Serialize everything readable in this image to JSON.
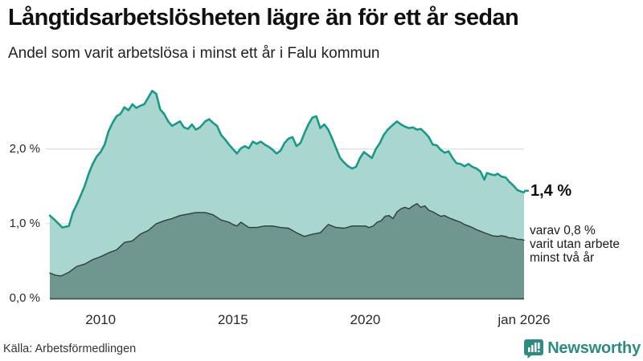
{
  "chart_data": {
    "type": "area",
    "title": "Långtidsarbetslösheten lägre än för ett år sedan",
    "subtitle": "Andel som varit arbetslösa i minst ett år i Falu kommun",
    "x_range": [
      2008.08,
      2026.0
    ],
    "y_axis": {
      "range": [
        0,
        2.9
      ],
      "ticks": [
        {
          "label": "2,0 %",
          "value": 2.0
        },
        {
          "label": "1,0 %",
          "value": 1.0
        },
        {
          "label": "0,0 %",
          "value": 0.0
        }
      ]
    },
    "x_axis": {
      "ticks": [
        {
          "label": "2010",
          "year": 2010
        },
        {
          "label": "2015",
          "year": 2015
        },
        {
          "label": "2020",
          "year": 2020
        },
        {
          "label": "jan 2026",
          "year": 2026
        }
      ]
    },
    "grid": "horizontal-only",
    "legend": "none",
    "series": [
      {
        "name": "Andel arbetslösa minst ett år",
        "line_color": "#1a998a",
        "fill_color": "#a9d6cf",
        "stroke_width": 2.6,
        "points": [
          [
            2008.08,
            1.11
          ],
          [
            2008.3,
            1.04
          ],
          [
            2008.55,
            0.95
          ],
          [
            2008.8,
            0.97
          ],
          [
            2008.95,
            1.15
          ],
          [
            2009.1,
            1.26
          ],
          [
            2009.25,
            1.38
          ],
          [
            2009.4,
            1.51
          ],
          [
            2009.55,
            1.67
          ],
          [
            2009.7,
            1.8
          ],
          [
            2009.85,
            1.9
          ],
          [
            2010.0,
            1.96
          ],
          [
            2010.15,
            2.06
          ],
          [
            2010.3,
            2.24
          ],
          [
            2010.45,
            2.35
          ],
          [
            2010.6,
            2.44
          ],
          [
            2010.75,
            2.47
          ],
          [
            2010.9,
            2.56
          ],
          [
            2011.05,
            2.52
          ],
          [
            2011.2,
            2.6
          ],
          [
            2011.35,
            2.55
          ],
          [
            2011.5,
            2.58
          ],
          [
            2011.65,
            2.6
          ],
          [
            2011.8,
            2.69
          ],
          [
            2011.95,
            2.78
          ],
          [
            2012.1,
            2.74
          ],
          [
            2012.25,
            2.53
          ],
          [
            2012.4,
            2.47
          ],
          [
            2012.55,
            2.37
          ],
          [
            2012.7,
            2.31
          ],
          [
            2012.85,
            2.34
          ],
          [
            2013.0,
            2.37
          ],
          [
            2013.15,
            2.29
          ],
          [
            2013.3,
            2.27
          ],
          [
            2013.45,
            2.33
          ],
          [
            2013.6,
            2.26
          ],
          [
            2013.75,
            2.29
          ],
          [
            2013.95,
            2.37
          ],
          [
            2014.1,
            2.4
          ],
          [
            2014.25,
            2.35
          ],
          [
            2014.4,
            2.31
          ],
          [
            2014.55,
            2.19
          ],
          [
            2014.7,
            2.13
          ],
          [
            2014.85,
            2.06
          ],
          [
            2015.0,
            2.0
          ],
          [
            2015.15,
            1.94
          ],
          [
            2015.3,
            2.01
          ],
          [
            2015.45,
            2.04
          ],
          [
            2015.6,
            2.01
          ],
          [
            2015.75,
            2.1
          ],
          [
            2015.9,
            2.07
          ],
          [
            2016.05,
            2.1
          ],
          [
            2016.2,
            2.06
          ],
          [
            2016.35,
            2.03
          ],
          [
            2016.5,
            1.99
          ],
          [
            2016.65,
            1.94
          ],
          [
            2016.8,
            1.98
          ],
          [
            2016.95,
            2.08
          ],
          [
            2017.1,
            2.14
          ],
          [
            2017.25,
            2.16
          ],
          [
            2017.4,
            2.04
          ],
          [
            2017.55,
            2.08
          ],
          [
            2017.7,
            2.21
          ],
          [
            2017.85,
            2.33
          ],
          [
            2018.0,
            2.42
          ],
          [
            2018.15,
            2.44
          ],
          [
            2018.3,
            2.28
          ],
          [
            2018.45,
            2.33
          ],
          [
            2018.6,
            2.26
          ],
          [
            2018.75,
            2.14
          ],
          [
            2018.9,
            2.01
          ],
          [
            2019.05,
            1.88
          ],
          [
            2019.2,
            1.82
          ],
          [
            2019.35,
            1.77
          ],
          [
            2019.5,
            1.74
          ],
          [
            2019.65,
            1.76
          ],
          [
            2019.8,
            1.88
          ],
          [
            2019.95,
            1.96
          ],
          [
            2020.1,
            1.92
          ],
          [
            2020.25,
            1.88
          ],
          [
            2020.4,
            2.0
          ],
          [
            2020.55,
            2.08
          ],
          [
            2020.7,
            2.19
          ],
          [
            2020.85,
            2.26
          ],
          [
            2021.0,
            2.31
          ],
          [
            2021.2,
            2.37
          ],
          [
            2021.35,
            2.33
          ],
          [
            2021.5,
            2.3
          ],
          [
            2021.65,
            2.28
          ],
          [
            2021.8,
            2.29
          ],
          [
            2021.95,
            2.26
          ],
          [
            2022.1,
            2.27
          ],
          [
            2022.25,
            2.22
          ],
          [
            2022.4,
            2.16
          ],
          [
            2022.55,
            2.06
          ],
          [
            2022.7,
            2.05
          ],
          [
            2022.85,
            1.99
          ],
          [
            2023.0,
            1.95
          ],
          [
            2023.15,
            1.97
          ],
          [
            2023.3,
            1.88
          ],
          [
            2023.45,
            1.81
          ],
          [
            2023.6,
            1.8
          ],
          [
            2023.75,
            1.77
          ],
          [
            2023.9,
            1.8
          ],
          [
            2024.05,
            1.76
          ],
          [
            2024.2,
            1.74
          ],
          [
            2024.35,
            1.7
          ],
          [
            2024.5,
            1.59
          ],
          [
            2024.6,
            1.68
          ],
          [
            2024.75,
            1.66
          ],
          [
            2024.9,
            1.65
          ],
          [
            2025.0,
            1.67
          ],
          [
            2025.15,
            1.63
          ],
          [
            2025.3,
            1.62
          ],
          [
            2025.45,
            1.56
          ],
          [
            2025.6,
            1.51
          ],
          [
            2025.75,
            1.45
          ],
          [
            2025.9,
            1.43
          ],
          [
            2026.0,
            1.42
          ]
        ],
        "end_value_label": "1,4 %"
      },
      {
        "name": "varav utan arbete minst två år",
        "line_color": "#2f3e3c",
        "fill_color": "#6f968f",
        "stroke_width": 1.4,
        "points": [
          [
            2008.08,
            0.34
          ],
          [
            2008.3,
            0.31
          ],
          [
            2008.5,
            0.3
          ],
          [
            2008.8,
            0.35
          ],
          [
            2009.1,
            0.43
          ],
          [
            2009.4,
            0.46
          ],
          [
            2009.7,
            0.52
          ],
          [
            2010.0,
            0.56
          ],
          [
            2010.3,
            0.61
          ],
          [
            2010.6,
            0.65
          ],
          [
            2010.9,
            0.75
          ],
          [
            2011.2,
            0.77
          ],
          [
            2011.5,
            0.86
          ],
          [
            2011.8,
            0.91
          ],
          [
            2012.1,
            1.0
          ],
          [
            2012.4,
            1.04
          ],
          [
            2012.7,
            1.07
          ],
          [
            2013.0,
            1.11
          ],
          [
            2013.3,
            1.13
          ],
          [
            2013.6,
            1.15
          ],
          [
            2013.95,
            1.15
          ],
          [
            2014.25,
            1.12
          ],
          [
            2014.55,
            1.05
          ],
          [
            2014.85,
            1.02
          ],
          [
            2015.0,
            0.99
          ],
          [
            2015.15,
            0.97
          ],
          [
            2015.3,
            1.02
          ],
          [
            2015.6,
            0.95
          ],
          [
            2015.9,
            0.95
          ],
          [
            2016.2,
            0.97
          ],
          [
            2016.5,
            0.97
          ],
          [
            2016.8,
            0.95
          ],
          [
            2017.1,
            0.94
          ],
          [
            2017.4,
            0.88
          ],
          [
            2017.7,
            0.83
          ],
          [
            2018.0,
            0.86
          ],
          [
            2018.3,
            0.88
          ],
          [
            2018.6,
            0.99
          ],
          [
            2018.9,
            0.95
          ],
          [
            2019.2,
            0.94
          ],
          [
            2019.5,
            0.97
          ],
          [
            2019.8,
            0.97
          ],
          [
            2020.0,
            0.97
          ],
          [
            2020.15,
            0.95
          ],
          [
            2020.3,
            0.97
          ],
          [
            2020.45,
            1.02
          ],
          [
            2020.6,
            1.04
          ],
          [
            2020.75,
            1.1
          ],
          [
            2020.9,
            1.11
          ],
          [
            2021.05,
            1.07
          ],
          [
            2021.2,
            1.16
          ],
          [
            2021.35,
            1.2
          ],
          [
            2021.5,
            1.22
          ],
          [
            2021.65,
            1.2
          ],
          [
            2021.8,
            1.24
          ],
          [
            2021.95,
            1.27
          ],
          [
            2022.1,
            1.22
          ],
          [
            2022.25,
            1.24
          ],
          [
            2022.4,
            1.18
          ],
          [
            2022.55,
            1.16
          ],
          [
            2022.7,
            1.13
          ],
          [
            2022.85,
            1.1
          ],
          [
            2023.0,
            1.11
          ],
          [
            2023.15,
            1.08
          ],
          [
            2023.3,
            1.06
          ],
          [
            2023.45,
            1.04
          ],
          [
            2023.6,
            1.02
          ],
          [
            2023.75,
            0.99
          ],
          [
            2023.9,
            0.97
          ],
          [
            2024.05,
            0.95
          ],
          [
            2024.2,
            0.92
          ],
          [
            2024.35,
            0.9
          ],
          [
            2024.5,
            0.88
          ],
          [
            2024.65,
            0.86
          ],
          [
            2024.8,
            0.84
          ],
          [
            2025.0,
            0.83
          ],
          [
            2025.15,
            0.84
          ],
          [
            2025.3,
            0.83
          ],
          [
            2025.45,
            0.81
          ],
          [
            2025.6,
            0.81
          ],
          [
            2025.75,
            0.79
          ],
          [
            2025.9,
            0.79
          ],
          [
            2026.0,
            0.78
          ]
        ]
      }
    ],
    "end_label": "1,4 %",
    "annotation": "varav 0,8 %\nvarit utan arbete\nminst två år",
    "colors": {
      "gridline": "#dcе0e3",
      "baseline": "#3d524d",
      "background": "#ffffff"
    }
  },
  "footer": {
    "source": "Källa: Arbetsförmedlingen",
    "brand": "Newsworthy",
    "brand_color": "#2e8b81",
    "brand_icon": "bar-chart-speech-bubble"
  }
}
